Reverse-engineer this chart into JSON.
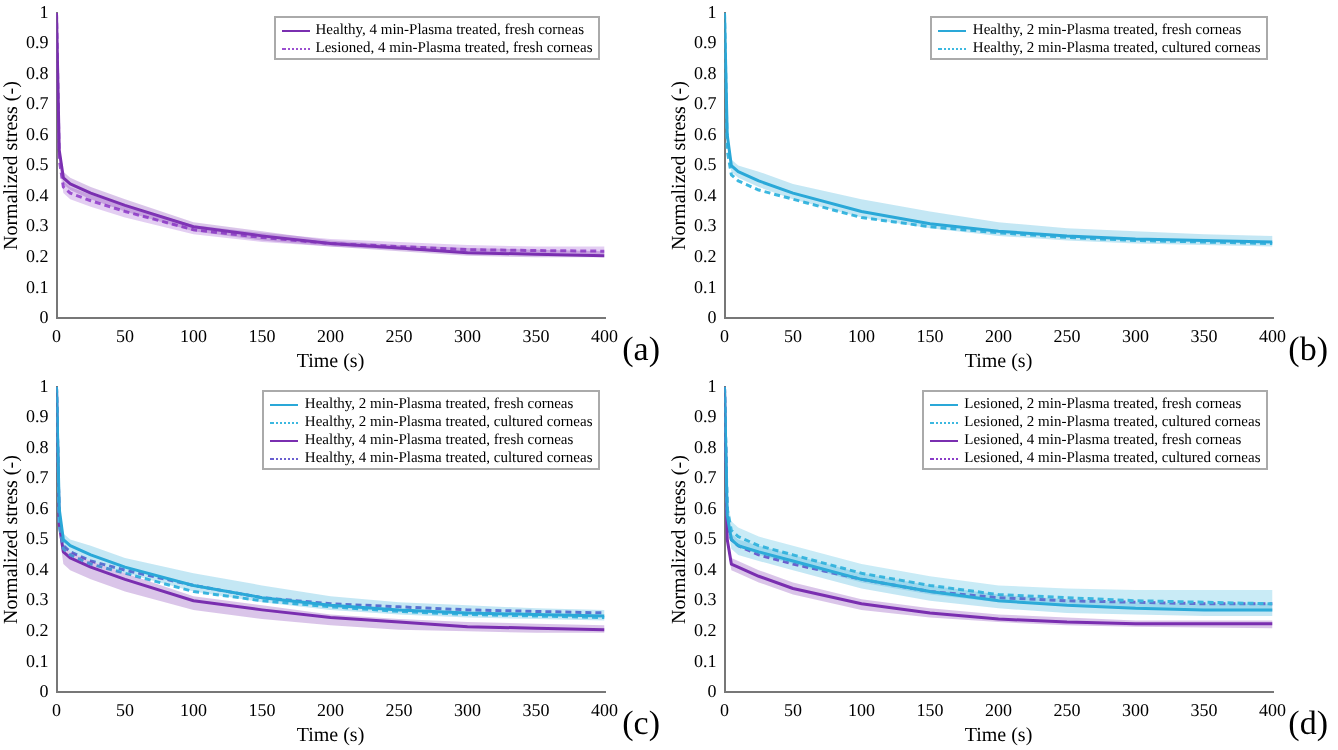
{
  "chart_data": [
    {
      "type": "line",
      "xlabel": "Time (s)",
      "ylabel": "Normalized stress (-)",
      "annotations": [
        "(a)"
      ],
      "xlim": [
        0,
        400
      ],
      "xticks": [
        0,
        50,
        100,
        150,
        200,
        250,
        300,
        350,
        400
      ],
      "ylim": [
        0,
        1
      ],
      "yticks": [
        0,
        0.1,
        0.2,
        0.3,
        0.4,
        0.5,
        0.6,
        0.7,
        0.8,
        0.9,
        1
      ],
      "legend": "top right",
      "x": [
        0,
        2,
        5,
        10,
        25,
        50,
        100,
        150,
        200,
        250,
        300,
        350,
        400
      ],
      "series": [
        {
          "name": "Healthy, 4 min-Plasma treated, fresh corneas",
          "color": "#7a2fb0",
          "line_style": "solid",
          "values": [
            1,
            0.55,
            0.46,
            0.44,
            0.41,
            0.37,
            0.3,
            0.27,
            0.245,
            0.23,
            0.215,
            0.21,
            0.205
          ],
          "lower": [
            1,
            0.53,
            0.44,
            0.42,
            0.39,
            0.35,
            0.285,
            0.255,
            0.235,
            0.22,
            0.205,
            0.2,
            0.2
          ],
          "upper": [
            1,
            0.57,
            0.48,
            0.46,
            0.43,
            0.39,
            0.315,
            0.285,
            0.255,
            0.24,
            0.23,
            0.225,
            0.22
          ]
        },
        {
          "name": "Lesioned, 4 min-Plasma treated, fresh corneas",
          "color": "#9b4fd0",
          "line_style": "dotted",
          "values": [
            1,
            0.52,
            0.43,
            0.41,
            0.385,
            0.35,
            0.29,
            0.265,
            0.245,
            0.235,
            0.225,
            0.222,
            0.22
          ],
          "lower": [
            1,
            0.5,
            0.41,
            0.39,
            0.365,
            0.33,
            0.275,
            0.25,
            0.235,
            0.225,
            0.215,
            0.212,
            0.21
          ],
          "upper": [
            1,
            0.54,
            0.45,
            0.43,
            0.405,
            0.37,
            0.305,
            0.28,
            0.26,
            0.25,
            0.24,
            0.235,
            0.235
          ]
        }
      ]
    },
    {
      "type": "line",
      "xlabel": "Time (s)",
      "ylabel": "Normalized stress (-)",
      "annotations": [
        "(b)"
      ],
      "xlim": [
        0,
        400
      ],
      "xticks": [
        0,
        50,
        100,
        150,
        200,
        250,
        300,
        350,
        400
      ],
      "ylim": [
        0,
        1
      ],
      "yticks": [
        0,
        0.1,
        0.2,
        0.3,
        0.4,
        0.5,
        0.6,
        0.7,
        0.8,
        0.9,
        1
      ],
      "legend": "top right",
      "x": [
        0,
        2,
        5,
        10,
        25,
        50,
        100,
        150,
        200,
        250,
        300,
        350,
        400
      ],
      "series": [
        {
          "name": "Healthy, 2 min-Plasma treated, fresh corneas",
          "color": "#2aa8d8",
          "line_style": "solid",
          "values": [
            1,
            0.6,
            0.5,
            0.48,
            0.45,
            0.41,
            0.35,
            0.31,
            0.285,
            0.27,
            0.26,
            0.255,
            0.25
          ],
          "lower": [
            1,
            0.58,
            0.48,
            0.46,
            0.43,
            0.39,
            0.33,
            0.295,
            0.27,
            0.255,
            0.245,
            0.24,
            0.235
          ],
          "upper": [
            1,
            0.62,
            0.52,
            0.5,
            0.48,
            0.44,
            0.39,
            0.35,
            0.315,
            0.295,
            0.285,
            0.275,
            0.27
          ]
        },
        {
          "name": "Healthy, 2 min-Plasma treated, cultured corneas",
          "color": "#3cb8e0",
          "line_style": "dotted",
          "values": [
            1,
            0.55,
            0.47,
            0.45,
            0.42,
            0.39,
            0.33,
            0.3,
            0.28,
            0.265,
            0.255,
            0.25,
            0.245
          ]
        }
      ]
    },
    {
      "type": "line",
      "xlabel": "Time (s)",
      "ylabel": "Normalized stress (-)",
      "annotations": [
        "(c)"
      ],
      "xlim": [
        0,
        400
      ],
      "xticks": [
        0,
        50,
        100,
        150,
        200,
        250,
        300,
        350,
        400
      ],
      "ylim": [
        0,
        1
      ],
      "yticks": [
        0,
        0.1,
        0.2,
        0.3,
        0.4,
        0.5,
        0.6,
        0.7,
        0.8,
        0.9,
        1
      ],
      "legend": "top right",
      "x": [
        0,
        2,
        5,
        10,
        25,
        50,
        100,
        150,
        200,
        250,
        300,
        350,
        400
      ],
      "series": [
        {
          "name": "Healthy, 2 min-Plasma treated, fresh corneas",
          "color": "#2aa8d8",
          "line_style": "solid",
          "values": [
            1,
            0.6,
            0.5,
            0.48,
            0.45,
            0.41,
            0.35,
            0.31,
            0.285,
            0.27,
            0.26,
            0.255,
            0.25
          ],
          "lower": [
            1,
            0.58,
            0.48,
            0.46,
            0.43,
            0.39,
            0.33,
            0.295,
            0.27,
            0.255,
            0.245,
            0.24,
            0.235
          ],
          "upper": [
            1,
            0.62,
            0.52,
            0.5,
            0.48,
            0.44,
            0.39,
            0.35,
            0.315,
            0.295,
            0.285,
            0.275,
            0.27
          ]
        },
        {
          "name": "Healthy, 2 min-Plasma treated, cultured corneas",
          "color": "#3cb8e0",
          "line_style": "dotted",
          "values": [
            1,
            0.55,
            0.47,
            0.45,
            0.42,
            0.39,
            0.33,
            0.3,
            0.28,
            0.265,
            0.255,
            0.25,
            0.245
          ]
        },
        {
          "name": "Healthy, 4 min-Plasma treated, fresh corneas",
          "color": "#7a2fb0",
          "line_style": "solid",
          "values": [
            1,
            0.55,
            0.46,
            0.44,
            0.41,
            0.37,
            0.3,
            0.27,
            0.245,
            0.23,
            0.215,
            0.21,
            0.205
          ],
          "lower": [
            1,
            0.52,
            0.42,
            0.4,
            0.37,
            0.33,
            0.27,
            0.24,
            0.22,
            0.205,
            0.2,
            0.195,
            0.195
          ],
          "upper": [
            1,
            0.57,
            0.48,
            0.46,
            0.43,
            0.39,
            0.315,
            0.285,
            0.255,
            0.24,
            0.23,
            0.225,
            0.22
          ]
        },
        {
          "name": "Healthy, 4 min-Plasma treated, cultured corneas",
          "color": "#6a5fd0",
          "line_style": "dotted",
          "values": [
            1,
            0.56,
            0.48,
            0.46,
            0.43,
            0.4,
            0.35,
            0.31,
            0.29,
            0.28,
            0.27,
            0.265,
            0.26
          ]
        }
      ]
    },
    {
      "type": "line",
      "xlabel": "Time (s)",
      "ylabel": "Normalized stress (-)",
      "annotations": [
        "(d)"
      ],
      "xlim": [
        0,
        400
      ],
      "xticks": [
        0,
        50,
        100,
        150,
        200,
        250,
        300,
        350,
        400
      ],
      "ylim": [
        0,
        1
      ],
      "yticks": [
        0,
        0.1,
        0.2,
        0.3,
        0.4,
        0.5,
        0.6,
        0.7,
        0.8,
        0.9,
        1
      ],
      "legend": "top right",
      "x": [
        0,
        2,
        5,
        10,
        25,
        50,
        100,
        150,
        200,
        250,
        300,
        350,
        400
      ],
      "series": [
        {
          "name": "Lesioned, 2 min-Plasma treated, fresh corneas",
          "color": "#2aa8d8",
          "line_style": "solid",
          "values": [
            1,
            0.58,
            0.5,
            0.48,
            0.46,
            0.43,
            0.37,
            0.33,
            0.3,
            0.285,
            0.275,
            0.27,
            0.27
          ],
          "lower": [
            1,
            0.56,
            0.47,
            0.45,
            0.43,
            0.4,
            0.34,
            0.3,
            0.275,
            0.26,
            0.255,
            0.25,
            0.25
          ],
          "upper": [
            1,
            0.6,
            0.52,
            0.5,
            0.48,
            0.45,
            0.39,
            0.35,
            0.32,
            0.305,
            0.295,
            0.29,
            0.29
          ]
        },
        {
          "name": "Lesioned, 2 min-Plasma treated, cultured corneas",
          "color": "#3cb8e0",
          "line_style": "dotted",
          "values": [
            1,
            0.6,
            0.53,
            0.51,
            0.48,
            0.45,
            0.39,
            0.35,
            0.32,
            0.31,
            0.3,
            0.295,
            0.29
          ],
          "lower": [
            1,
            0.57,
            0.5,
            0.48,
            0.45,
            0.42,
            0.36,
            0.32,
            0.295,
            0.285,
            0.275,
            0.27,
            0.265
          ],
          "upper": [
            1,
            0.63,
            0.56,
            0.54,
            0.51,
            0.48,
            0.42,
            0.38,
            0.35,
            0.34,
            0.335,
            0.335,
            0.335
          ]
        },
        {
          "name": "Lesioned, 4 min-Plasma treated, fresh corneas",
          "color": "#7a2fb0",
          "line_style": "solid",
          "values": [
            1,
            0.5,
            0.42,
            0.41,
            0.38,
            0.34,
            0.29,
            0.26,
            0.24,
            0.23,
            0.225,
            0.225,
            0.225
          ],
          "lower": [
            1,
            0.48,
            0.4,
            0.39,
            0.36,
            0.32,
            0.27,
            0.245,
            0.23,
            0.22,
            0.215,
            0.212,
            0.21
          ],
          "upper": [
            1,
            0.52,
            0.44,
            0.43,
            0.4,
            0.36,
            0.305,
            0.275,
            0.255,
            0.245,
            0.235,
            0.235,
            0.235
          ]
        },
        {
          "name": "Lesioned, 4 min-Plasma treated, cultured corneas",
          "color": "#8a3cc8",
          "line_style": "dotted",
          "values": [
            1,
            0.56,
            0.5,
            0.48,
            0.45,
            0.42,
            0.37,
            0.33,
            0.31,
            0.3,
            0.295,
            0.29,
            0.29
          ]
        }
      ]
    }
  ]
}
